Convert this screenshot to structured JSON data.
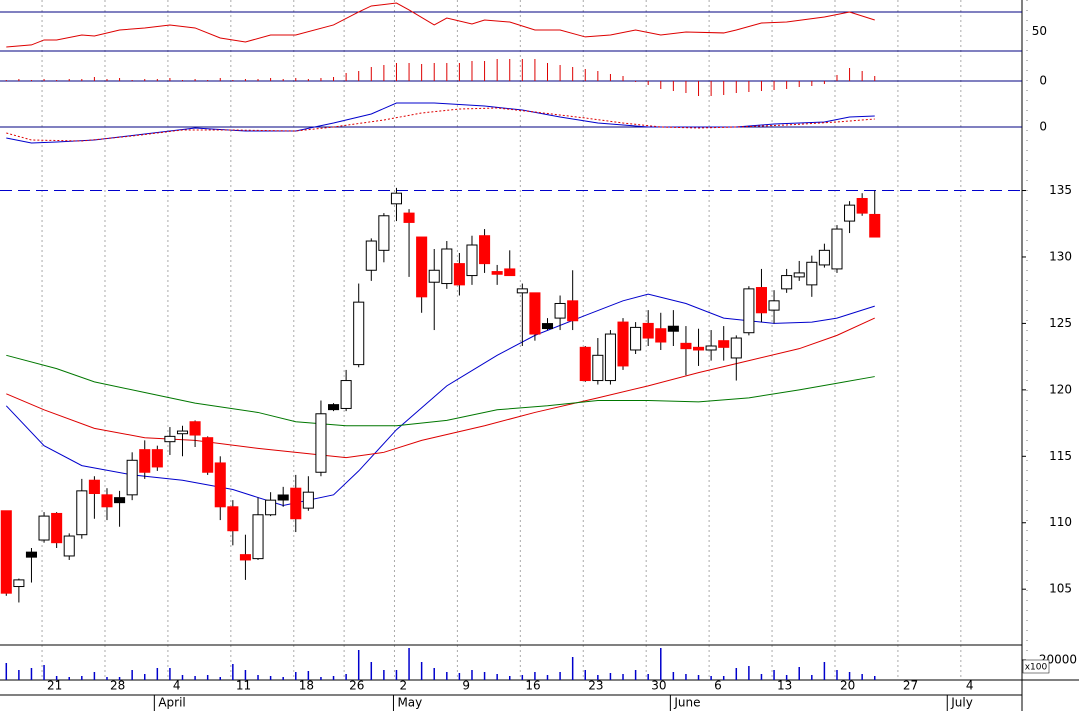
{
  "chart_data": {
    "type": "candlestick",
    "xlim": [
      -0.5,
      80.7
    ],
    "xticks": [
      {
        "value": 3,
        "label": "21"
      },
      {
        "value": 8,
        "label": "28"
      },
      {
        "value": 13,
        "label": "4"
      },
      {
        "value": 18,
        "label": "11"
      },
      {
        "value": 23,
        "label": "18"
      },
      {
        "value": 27,
        "label": "26"
      },
      {
        "value": 31,
        "label": "2"
      },
      {
        "value": 36,
        "label": "9"
      },
      {
        "value": 41,
        "label": "16"
      },
      {
        "value": 46,
        "label": "23"
      },
      {
        "value": 51,
        "label": "30"
      },
      {
        "value": 56,
        "label": "6"
      },
      {
        "value": 61,
        "label": "13"
      },
      {
        "value": 66,
        "label": "20"
      },
      {
        "value": 71,
        "label": "27"
      },
      {
        "value": 76,
        "label": "4"
      }
    ],
    "month_ticks": [
      {
        "value": 12,
        "label": "April"
      },
      {
        "value": 31,
        "label": "May"
      },
      {
        "value": 53,
        "label": "June"
      },
      {
        "value": 75,
        "label": "July"
      }
    ],
    "ylim": [
      100.8,
      138.2
    ],
    "yticks": [
      105,
      110,
      115,
      120,
      125,
      130,
      135
    ],
    "grid": true,
    "up_color": "#ffffff",
    "down_color": "#ff0000",
    "flat_color": "#000000",
    "reference_line": {
      "value": 135,
      "color": "#0000cc"
    },
    "open": [
      110.9,
      105.2,
      107.6,
      108.7,
      110.7,
      107.5,
      109.1,
      113.2,
      112.1,
      111.7,
      112.1,
      115.5,
      115.5,
      116.1,
      116.7,
      117.6,
      116.4,
      114.5,
      111.2,
      107.6,
      107.3,
      110.6,
      111.9,
      112.6,
      111.1,
      113.8,
      118.7,
      118.6,
      121.9,
      129.0,
      130.5,
      134.0,
      133.3,
      131.5,
      128.1,
      128.0,
      129.5,
      128.6,
      131.6,
      128.9,
      129.1,
      127.3,
      127.3,
      124.8,
      125.4,
      126.7,
      123.2,
      120.7,
      120.7,
      125.1,
      123.0,
      125.0,
      124.6,
      124.6,
      123.5,
      123.2,
      123.0,
      123.7,
      122.4,
      124.3,
      127.7,
      126.0,
      127.6,
      128.5,
      127.9,
      129.4,
      129.1,
      132.7,
      134.4,
      133.2
    ],
    "high": [
      110.9,
      105.8,
      108.1,
      110.8,
      110.8,
      109.2,
      113.3,
      113.5,
      112.6,
      112.4,
      115.3,
      116.2,
      115.8,
      117.2,
      117.3,
      117.7,
      116.5,
      115.0,
      111.7,
      109.1,
      111.9,
      112.3,
      112.7,
      113.6,
      113.5,
      119.2,
      119.0,
      121.5,
      128.0,
      131.4,
      133.3,
      135.2,
      133.6,
      131.5,
      130.6,
      131.2,
      130.3,
      131.6,
      132.1,
      129.4,
      130.5,
      128.0,
      127.3,
      125.4,
      127.1,
      129.0,
      123.3,
      123.9,
      124.5,
      125.4,
      125.1,
      126.0,
      125.8,
      126.0,
      124.8,
      124.6,
      124.5,
      124.8,
      124.1,
      127.8,
      129.1,
      127.5,
      129.1,
      129.7,
      130.1,
      131.0,
      132.4,
      134.2,
      134.8,
      135.0
    ],
    "low": [
      104.5,
      104.0,
      105.5,
      108.5,
      108.1,
      107.2,
      108.8,
      110.3,
      110.2,
      109.7,
      111.7,
      113.3,
      113.9,
      115.1,
      115.0,
      115.7,
      113.6,
      110.2,
      108.3,
      105.7,
      107.2,
      110.5,
      111.2,
      109.3,
      110.9,
      113.5,
      118.4,
      118.4,
      121.7,
      128.2,
      129.6,
      132.7,
      128.5,
      125.8,
      124.5,
      127.6,
      127.1,
      127.9,
      128.8,
      127.9,
      128.6,
      123.3,
      123.7,
      124.5,
      124.5,
      124.5,
      120.6,
      120.4,
      120.4,
      121.5,
      122.7,
      123.3,
      123.0,
      123.3,
      121.1,
      121.8,
      122.2,
      122.2,
      120.7,
      124.1,
      125.1,
      125.0,
      127.3,
      128.2,
      127.0,
      129.2,
      128.8,
      131.8,
      133.1,
      131.5
    ],
    "close": [
      104.7,
      105.7,
      107.6,
      110.5,
      108.5,
      109.0,
      112.4,
      112.2,
      111.2,
      111.7,
      114.7,
      113.8,
      114.2,
      116.5,
      116.9,
      116.6,
      113.8,
      111.2,
      109.4,
      107.2,
      110.6,
      111.7,
      111.9,
      110.3,
      112.3,
      118.2,
      118.7,
      120.7,
      126.6,
      131.2,
      133.1,
      134.8,
      132.6,
      127.0,
      129.0,
      130.6,
      127.9,
      130.9,
      129.5,
      128.7,
      128.6,
      127.6,
      124.2,
      124.8,
      126.5,
      125.2,
      120.7,
      122.6,
      124.2,
      121.8,
      124.7,
      123.9,
      123.6,
      124.6,
      123.1,
      123.0,
      123.3,
      123.2,
      123.9,
      127.6,
      125.8,
      126.7,
      128.6,
      128.8,
      129.6,
      130.5,
      132.1,
      133.9,
      133.3,
      131.5
    ],
    "overlays": [
      {
        "color": "#0000cc",
        "x": [
          0,
          3,
          6,
          10,
          14,
          18,
          22,
          26,
          28,
          31,
          35,
          39,
          42,
          46,
          49,
          51,
          54,
          57,
          61,
          64,
          66,
          69
        ],
        "values": [
          118.8,
          115.8,
          114.3,
          113.6,
          113.2,
          112.5,
          111.3,
          112.1,
          113.9,
          117.0,
          120.3,
          122.6,
          124.1,
          125.6,
          126.7,
          127.2,
          126.5,
          125.4,
          125.0,
          125.1,
          125.4,
          126.3
        ]
      },
      {
        "color": "#dd0000",
        "x": [
          0,
          3,
          7,
          11,
          15,
          20,
          25,
          27,
          30,
          33,
          38,
          42,
          47,
          51,
          55,
          59,
          63,
          66,
          69
        ],
        "values": [
          119.7,
          118.5,
          117.1,
          116.4,
          116.2,
          115.6,
          115.1,
          114.9,
          115.3,
          116.2,
          117.3,
          118.3,
          119.4,
          120.3,
          121.3,
          122.2,
          123.1,
          124.1,
          125.4
        ]
      },
      {
        "color": "#007700",
        "x": [
          0,
          4,
          7,
          11,
          15,
          20,
          23,
          27,
          31,
          35,
          39,
          43,
          47,
          51,
          55,
          59,
          63,
          66,
          69
        ],
        "values": [
          122.6,
          121.6,
          120.6,
          119.8,
          119.0,
          118.3,
          117.6,
          117.3,
          117.3,
          117.7,
          118.5,
          118.8,
          119.2,
          119.2,
          119.1,
          119.4,
          120.0,
          120.5,
          121.0
        ]
      }
    ],
    "rsi": {
      "type": "line",
      "ylim": [
        19.7,
        82.3
      ],
      "yticks": [
        50
      ],
      "levels": [
        30,
        70
      ],
      "level_color": "#000080",
      "color": "#dd0000",
      "x": [
        0,
        2,
        3,
        4,
        6,
        7,
        9,
        11,
        13,
        15,
        17,
        19,
        21,
        23,
        26,
        28,
        29,
        31,
        32,
        34,
        35,
        37,
        38,
        40,
        42,
        44,
        46,
        48,
        50,
        52,
        54,
        57,
        58,
        60,
        62,
        65,
        67,
        69
      ],
      "values": [
        34.1,
        36.2,
        41.3,
        41.3,
        46.4,
        45.4,
        51.5,
        53.6,
        56.7,
        53.6,
        43.3,
        39.2,
        46.4,
        46.4,
        56.7,
        70.0,
        76.2,
        79.2,
        72.1,
        56.7,
        63.8,
        57.7,
        61.8,
        59.7,
        51.5,
        51.5,
        44.4,
        46.4,
        51.5,
        46.4,
        49.5,
        48.5,
        51.5,
        58.7,
        59.7,
        64.9,
        70.0,
        61.8
      ]
    },
    "histogram": {
      "type": "bar",
      "ylim": [
        -20,
        20
      ],
      "yticks": [
        0
      ],
      "color": "#dd0000",
      "values": [
        1,
        2,
        1,
        2,
        1,
        2,
        2,
        4,
        2,
        3,
        1,
        2,
        2,
        3,
        1,
        2,
        1,
        3,
        1,
        2,
        2,
        3,
        2,
        3,
        2,
        3,
        4,
        8,
        10,
        14,
        16,
        18,
        18,
        17,
        18,
        18,
        18,
        20,
        20,
        22,
        22,
        22,
        22,
        18,
        16,
        14,
        12,
        10,
        7,
        5,
        -1,
        -4,
        -8,
        -10,
        -12,
        -15,
        -15,
        -14,
        -12,
        -11,
        -10,
        -9,
        -8,
        -6,
        -5,
        -3,
        6,
        13,
        10,
        5
      ]
    },
    "macd": {
      "type": "line",
      "ylim": [
        -21,
        26
      ],
      "yticks": [
        0
      ],
      "series": [
        {
          "color": "#0000cc",
          "style": "solid",
          "x": [
            0,
            2,
            4,
            7,
            11,
            15,
            19,
            23,
            26,
            29,
            31,
            34,
            38,
            41,
            44,
            47,
            51,
            55,
            58,
            61,
            65,
            67,
            69
          ],
          "values": [
            -11,
            -16,
            -15,
            -13,
            -7,
            -1,
            -4,
            -4,
            4,
            13,
            24,
            24,
            21,
            17,
            10,
            4,
            0,
            0,
            0,
            3,
            5,
            10,
            11
          ]
        },
        {
          "color": "#dd0000",
          "style": "dotted",
          "x": [
            0,
            2,
            6,
            10,
            14,
            18,
            23,
            26,
            30,
            33,
            36,
            39,
            42,
            46,
            49,
            52,
            55,
            58,
            62,
            66,
            69
          ],
          "values": [
            -6,
            -13,
            -14,
            -9,
            -3,
            -3,
            -4,
            0,
            7,
            14,
            18,
            19,
            15,
            9,
            4,
            0,
            -1,
            0,
            2,
            5,
            8
          ]
        }
      ]
    },
    "volume": {
      "type": "bar",
      "ylim": [
        0,
        35000
      ],
      "yticks": [
        20000
      ],
      "unit_label": "x100",
      "color": "#0000cc",
      "values": [
        17000,
        10000,
        12000,
        15000,
        4000,
        3000,
        4000,
        8000,
        3000,
        3000,
        10000,
        6000,
        12000,
        12000,
        5000,
        4000,
        5000,
        3000,
        16000,
        10000,
        5000,
        4000,
        3000,
        8000,
        9000,
        3000,
        4000,
        6000,
        30000,
        18000,
        10000,
        10000,
        32000,
        18000,
        12000,
        8000,
        7000,
        10000,
        8000,
        6000,
        4000,
        5000,
        8000,
        5000,
        8000,
        23000,
        10000,
        5000,
        7000,
        6000,
        10000,
        6000,
        32000,
        8000,
        6000,
        5000,
        4000,
        4000,
        12000,
        14000,
        6000,
        10000,
        5000,
        13000,
        5000,
        18000,
        10000,
        8000,
        6000,
        4000
      ]
    }
  }
}
